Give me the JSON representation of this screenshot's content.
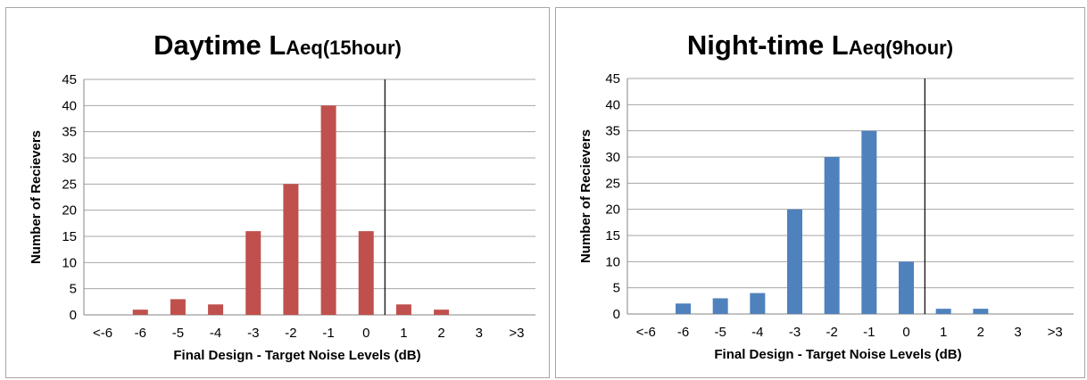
{
  "chart_data": [
    {
      "type": "bar",
      "title": "Daytime L",
      "title_subscript": "Aeq(15hour)",
      "xlabel": "Final Design  - Target Noise Levels  (dB)",
      "ylabel": "Number  of Recievers",
      "categories": [
        "<-6",
        "-6",
        "-5",
        "-4",
        "-3",
        "-2",
        "-1",
        "0",
        "1",
        "2",
        "3",
        ">3"
      ],
      "values": [
        0,
        1,
        3,
        2,
        16,
        25,
        40,
        16,
        2,
        1,
        0,
        0
      ],
      "ylim": [
        0,
        45
      ],
      "yticks": [
        0,
        5,
        10,
        15,
        20,
        25,
        30,
        35,
        40,
        45
      ],
      "grid": true,
      "legend": "none",
      "reference_line_between": [
        "0",
        "1"
      ],
      "color": "#c0504d"
    },
    {
      "type": "bar",
      "title": "Night-time L",
      "title_subscript": "Aeq(9hour)",
      "xlabel": "Final Design  - Target Noise Levels  (dB)",
      "ylabel": "Number  of Recievers",
      "categories": [
        "<-6",
        "-6",
        "-5",
        "-4",
        "-3",
        "-2",
        "-1",
        "0",
        "1",
        "2",
        "3",
        ">3"
      ],
      "values": [
        0,
        2,
        3,
        4,
        20,
        30,
        35,
        10,
        1,
        1,
        0,
        0
      ],
      "ylim": [
        0,
        45
      ],
      "yticks": [
        0,
        5,
        10,
        15,
        20,
        25,
        30,
        35,
        40,
        45
      ],
      "grid": true,
      "legend": "none",
      "reference_line_between": [
        "0",
        "1"
      ],
      "color": "#4f81bd"
    }
  ]
}
